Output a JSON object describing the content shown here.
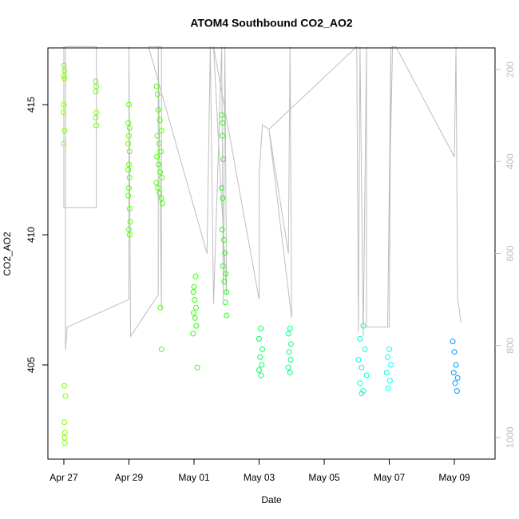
{
  "chart_data": {
    "type": "scatter",
    "title": "ATOM4 Southbound CO2_AO2",
    "x_label": "Date",
    "y_label": "CO2_AO2",
    "xlim": [
      -0.49,
      13.25
    ],
    "xticks": [
      {
        "value": 0,
        "label": "Apr 27"
      },
      {
        "value": 2,
        "label": "Apr 29"
      },
      {
        "value": 4,
        "label": "May 01"
      },
      {
        "value": 6,
        "label": "May 03"
      },
      {
        "value": 8,
        "label": "May 05"
      },
      {
        "value": 10,
        "label": "May 07"
      },
      {
        "value": 12,
        "label": "May 09"
      }
    ],
    "ylim": [
      401.38,
      417.18
    ],
    "yticks": [
      405,
      410,
      415
    ],
    "y2lim": [
      153,
      1047
    ],
    "y2ticks": [
      200,
      400,
      600,
      800,
      1000
    ],
    "y2_reversed": true,
    "series": [
      {
        "color": "#80ff00",
        "x": [
          0.0,
          0.02,
          0.0,
          0.02,
          0.0,
          -0.01,
          0.02,
          0.0,
          0.02,
          0.05,
          0.02,
          0.03,
          0.02,
          0.03
        ],
        "values": [
          416.5,
          416.3,
          416.1,
          416.0,
          415.0,
          414.7,
          414.0,
          413.5,
          404.2,
          403.8,
          402.8,
          402.4,
          402.2,
          402.0
        ]
      },
      {
        "color": "#70ff00",
        "x": [
          0.98,
          1.0,
          0.98,
          1.0,
          0.98,
          1.0
        ],
        "values": [
          415.9,
          415.7,
          415.5,
          414.7,
          414.5,
          414.2
        ]
      },
      {
        "color": "#5cff00",
        "x": [
          2.0,
          1.98,
          2.02,
          2.0,
          1.98,
          2.02,
          2.0,
          1.98,
          2.02,
          2.0,
          1.98,
          2.02,
          2.04,
          2.0,
          2.02
        ],
        "values": [
          415.0,
          414.3,
          414.1,
          413.8,
          413.5,
          413.2,
          412.7,
          412.5,
          412.2,
          411.8,
          411.5,
          411.0,
          410.5,
          410.2,
          410.0
        ]
      },
      {
        "color": "#4cff00",
        "x": [
          2.85,
          2.88,
          2.9,
          2.95,
          3.0,
          2.87,
          2.93,
          2.98,
          2.86,
          2.91,
          2.96,
          3.01,
          2.84,
          2.89,
          2.94,
          2.99,
          3.03,
          2.97,
          3.0
        ],
        "values": [
          415.7,
          415.4,
          414.8,
          414.4,
          414.0,
          413.8,
          413.5,
          413.2,
          413.0,
          412.7,
          412.4,
          412.2,
          412.0,
          411.8,
          411.6,
          411.4,
          411.2,
          407.2,
          405.6
        ]
      },
      {
        "color": "#33ff00",
        "x": [
          4.05,
          4.0,
          3.98,
          4.02,
          4.06,
          3.99,
          4.03,
          4.07,
          3.97,
          4.1
        ],
        "values": [
          408.4,
          408.0,
          407.8,
          407.5,
          407.2,
          407.0,
          406.8,
          406.5,
          406.2,
          404.9
        ]
      },
      {
        "color": "#22ff11",
        "x": [
          4.85,
          4.88,
          4.87,
          4.9,
          4.85,
          4.88,
          4.86,
          4.92,
          4.95,
          4.89,
          4.98,
          4.93,
          5.0,
          4.96,
          5.0
        ],
        "values": [
          414.6,
          414.3,
          413.8,
          412.9,
          411.8,
          411.4,
          410.2,
          409.8,
          409.3,
          408.8,
          408.5,
          408.2,
          407.8,
          407.4,
          406.9
        ]
      },
      {
        "color": "#00ff66",
        "x": [
          6.05,
          6.0,
          6.1,
          6.03,
          6.08,
          6.0,
          6.06
        ],
        "values": [
          406.4,
          406.0,
          405.6,
          405.3,
          405.0,
          404.8,
          404.6
        ]
      },
      {
        "color": "#00ff88",
        "x": [
          6.95,
          6.9,
          6.98,
          6.92,
          6.97,
          6.9,
          6.95
        ],
        "values": [
          406.4,
          406.2,
          405.8,
          405.5,
          405.2,
          404.9,
          404.7
        ]
      },
      {
        "color": "#00ffdd",
        "x": [
          9.2,
          9.1,
          9.25,
          9.05,
          9.15,
          9.3,
          9.1,
          9.2,
          9.15
        ],
        "values": [
          406.5,
          406.0,
          405.6,
          405.2,
          404.9,
          404.6,
          404.3,
          404.0,
          403.9
        ]
      },
      {
        "color": "#00ffee",
        "x": [
          10.0,
          9.95,
          10.05,
          9.92,
          10.02,
          9.97
        ],
        "values": [
          405.6,
          405.3,
          405.0,
          404.7,
          404.4,
          404.1
        ]
      },
      {
        "color": "#0099ff",
        "x": [
          11.95,
          12.0,
          12.05,
          11.98,
          12.1,
          12.02,
          12.08
        ],
        "values": [
          405.9,
          405.5,
          405.0,
          404.7,
          404.5,
          404.3,
          404.0
        ]
      },
      {
        "type": "line",
        "axis": "y2",
        "color": "#bebebe",
        "x": [
          0,
          0,
          1,
          1,
          0.05,
          0.05,
          0.1,
          2.0,
          2.0,
          2.05,
          2.9,
          2.9,
          3.0,
          3.0,
          2.6,
          4.4,
          4.5,
          4.6,
          4.85,
          4.9,
          4.95,
          5.0,
          4.6,
          6.0,
          6.0,
          6.1,
          6.3,
          6.9,
          6.95,
          7.0,
          6.3,
          9.0,
          9.05,
          9.1,
          9.2,
          9.3,
          9.3,
          10.0,
          10.05,
          9.95,
          10.0,
          10.1,
          10.2,
          12.0,
          12.05,
          12.1,
          12.15,
          12.2
        ],
        "values": [
          150,
          500,
          500,
          150,
          150,
          810,
          760,
          700,
          150,
          780,
          690,
          150,
          720,
          150,
          150,
          600,
          150,
          710,
          150,
          700,
          150,
          690,
          150,
          700,
          430,
          320,
          330,
          600,
          150,
          740,
          330,
          150,
          770,
          150,
          780,
          150,
          760,
          760,
          150,
          760,
          490,
          150,
          150,
          390,
          150,
          700,
          720,
          750
        ]
      }
    ]
  }
}
